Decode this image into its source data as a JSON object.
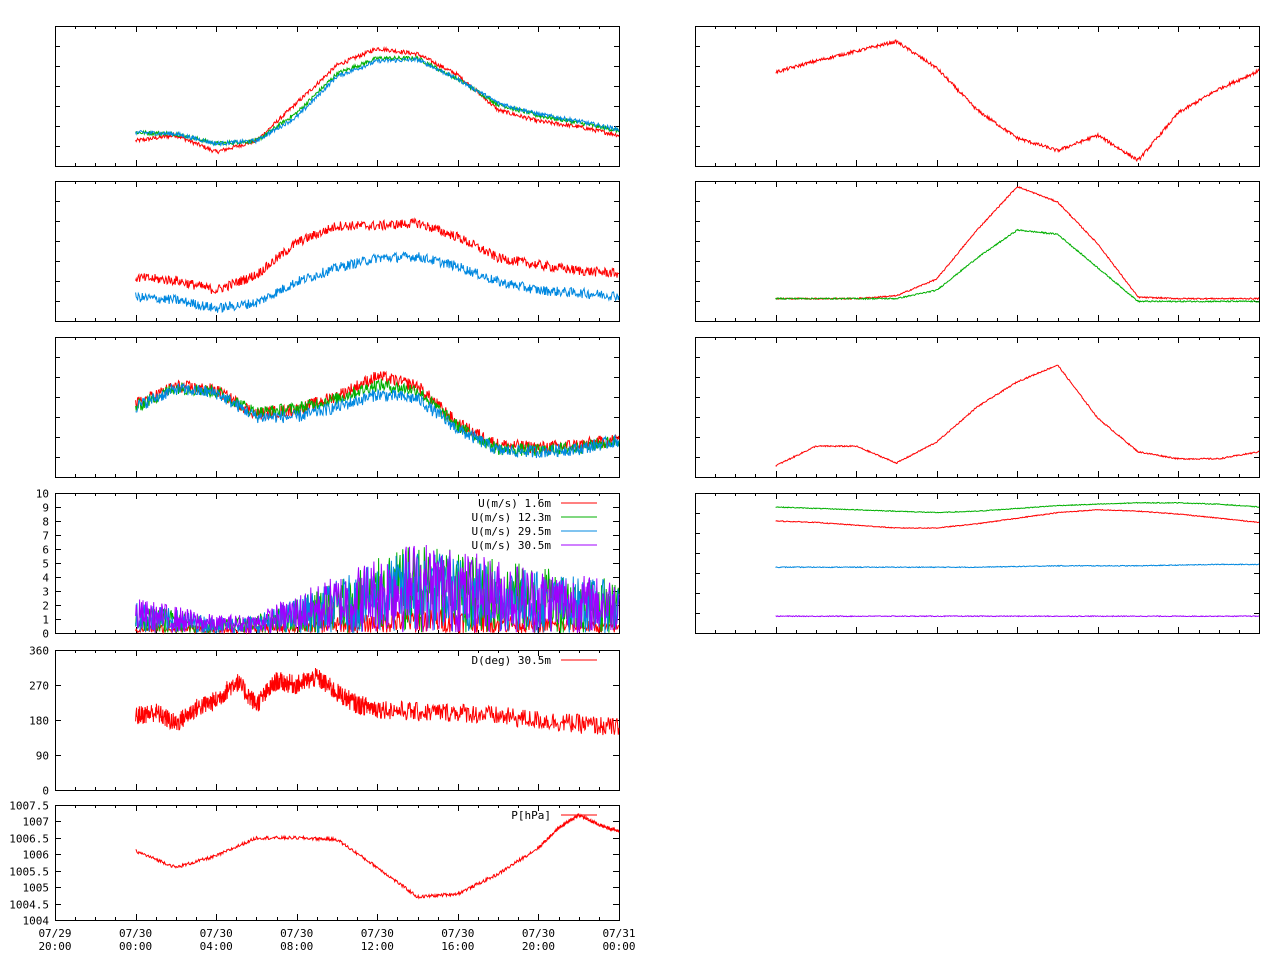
{
  "x_ticks": [
    "07/29\n20:00",
    "07/30\n00:00",
    "07/30\n04:00",
    "07/30\n08:00",
    "07/30\n12:00",
    "07/30\n16:00",
    "07/30\n20:00",
    "07/31\n00:00"
  ],
  "colors": {
    "red": "#ff0000",
    "green": "#00b000",
    "blue": "#0088e0",
    "purple": "#a000ff"
  },
  "chart_data": [
    {
      "id": "temp_profile",
      "type": "line",
      "x": [
        "07/30 00:00",
        "07/30 02:00",
        "07/30 04:00",
        "07/30 06:00",
        "07/30 08:00",
        "07/30 10:00",
        "07/30 12:00",
        "07/30 14:00",
        "07/30 16:00",
        "07/30 18:00",
        "07/30 20:00",
        "07/30 22:00",
        "07/31 00:00"
      ],
      "ylim": [
        0,
        10
      ],
      "title": "",
      "xlabel": "",
      "ylabel": "",
      "series": [
        {
          "color": "#ff0000",
          "values": [
            1.8,
            2.2,
            1.0,
            1.8,
            4.5,
            7.2,
            8.4,
            8.0,
            6.5,
            4.0,
            3.2,
            2.8,
            2.2
          ]
        },
        {
          "color": "#00b000",
          "values": [
            2.4,
            2.3,
            1.6,
            1.8,
            3.8,
            6.6,
            7.7,
            7.7,
            6.2,
            4.4,
            3.6,
            3.1,
            2.5
          ]
        },
        {
          "color": "#0088e0",
          "values": [
            2.4,
            2.3,
            1.6,
            1.8,
            3.5,
            6.4,
            7.5,
            7.6,
            6.2,
            4.5,
            3.7,
            3.2,
            2.6
          ]
        }
      ]
    },
    {
      "id": "radiation_top",
      "type": "line",
      "x": [
        "07/30 00:00",
        "07/30 02:00",
        "07/30 04:00",
        "07/30 06:00",
        "07/30 08:00",
        "07/30 10:00",
        "07/30 12:00",
        "07/30 14:00",
        "07/30 16:00",
        "07/30 18:00",
        "07/30 20:00",
        "07/30 22:00",
        "07/31 00:00"
      ],
      "ylim": [
        0,
        10
      ],
      "title": "",
      "xlabel": "",
      "ylabel": "",
      "series": [
        {
          "color": "#ff0000",
          "values": [
            6.7,
            7.5,
            8.2,
            8.9,
            7.0,
            4.0,
            2.0,
            1.1,
            2.2,
            0.4,
            3.8,
            5.5,
            6.8
          ]
        }
      ]
    },
    {
      "id": "temp_pair",
      "type": "line",
      "x": [
        "07/30 00:00",
        "07/30 02:00",
        "07/30 04:00",
        "07/30 06:00",
        "07/30 08:00",
        "07/30 10:00",
        "07/30 12:00",
        "07/30 14:00",
        "07/30 16:00",
        "07/30 18:00",
        "07/30 20:00",
        "07/30 22:00",
        "07/31 00:00"
      ],
      "ylim": [
        0,
        10
      ],
      "title": "",
      "xlabel": "",
      "ylabel": "",
      "series": [
        {
          "color": "#ff0000",
          "values": [
            3.1,
            2.9,
            2.2,
            3.3,
            5.6,
            6.8,
            6.8,
            7.0,
            6.0,
            4.5,
            4.0,
            3.6,
            3.4
          ]
        },
        {
          "color": "#0088e0",
          "values": [
            1.7,
            1.5,
            0.9,
            1.3,
            2.8,
            3.8,
            4.5,
            4.6,
            3.9,
            2.8,
            2.2,
            2.0,
            1.8
          ]
        }
      ]
    },
    {
      "id": "solar_radiation",
      "type": "line",
      "x": [
        "07/30 00:00",
        "07/30 02:00",
        "07/30 04:00",
        "07/30 06:00",
        "07/30 08:00",
        "07/30 10:00",
        "07/30 12:00",
        "07/30 14:00",
        "07/30 16:00",
        "07/30 18:00",
        "07/30 20:00",
        "07/30 22:00",
        "07/31 00:00"
      ],
      "ylim": [
        0,
        10
      ],
      "title": "",
      "xlabel": "",
      "ylabel": "",
      "series": [
        {
          "color": "#ff0000",
          "values": [
            1.6,
            1.6,
            1.6,
            1.8,
            3.0,
            6.5,
            9.6,
            8.5,
            5.5,
            1.7,
            1.6,
            1.6,
            1.6
          ]
        },
        {
          "color": "#00b000",
          "values": [
            1.6,
            1.6,
            1.6,
            1.6,
            2.2,
            4.5,
            6.5,
            6.2,
            3.8,
            1.4,
            1.4,
            1.4,
            1.4
          ]
        }
      ]
    },
    {
      "id": "humidity_profile",
      "type": "line",
      "x": [
        "07/30 00:00",
        "07/30 02:00",
        "07/30 04:00",
        "07/30 06:00",
        "07/30 08:00",
        "07/30 10:00",
        "07/30 12:00",
        "07/30 14:00",
        "07/30 16:00",
        "07/30 18:00",
        "07/30 20:00",
        "07/30 22:00",
        "07/31 00:00"
      ],
      "ylim": [
        0,
        10
      ],
      "title": "",
      "xlabel": "",
      "ylabel": "",
      "series": [
        {
          "color": "#ff0000",
          "values": [
            5.2,
            6.5,
            6.2,
            4.5,
            4.8,
            5.8,
            7.2,
            6.5,
            3.8,
            2.3,
            2.1,
            2.3,
            2.7
          ]
        },
        {
          "color": "#00b000",
          "values": [
            5.0,
            6.4,
            6.1,
            4.6,
            4.9,
            5.6,
            6.6,
            6.2,
            3.6,
            2.0,
            1.9,
            2.1,
            2.6
          ]
        },
        {
          "color": "#0088e0",
          "values": [
            5.0,
            6.3,
            6.0,
            4.3,
            4.3,
            5.0,
            5.9,
            5.6,
            3.4,
            1.9,
            1.8,
            2.0,
            2.6
          ]
        }
      ]
    },
    {
      "id": "snow_temp",
      "type": "line",
      "x": [
        "07/30 00:00",
        "07/30 02:00",
        "07/30 04:00",
        "07/30 06:00",
        "07/30 08:00",
        "07/30 10:00",
        "07/30 12:00",
        "07/30 14:00",
        "07/30 16:00",
        "07/30 18:00",
        "07/30 20:00",
        "07/30 22:00",
        "07/31 00:00"
      ],
      "ylim": [
        0,
        10
      ],
      "title": "",
      "xlabel": "",
      "ylabel": "",
      "series": [
        {
          "color": "#ff0000",
          "values": [
            0.8,
            2.2,
            2.2,
            1.0,
            2.5,
            5.0,
            6.8,
            8.0,
            4.2,
            1.8,
            1.3,
            1.3,
            1.8
          ]
        }
      ]
    },
    {
      "id": "wind_speed",
      "type": "line",
      "x": [
        "07/30 00:00",
        "07/30 02:00",
        "07/30 04:00",
        "07/30 06:00",
        "07/30 08:00",
        "07/30 10:00",
        "07/30 12:00",
        "07/30 14:00",
        "07/30 16:00",
        "07/30 18:00",
        "07/30 20:00",
        "07/30 22:00",
        "07/31 00:00"
      ],
      "yticks": [
        "0",
        "1",
        "2",
        "3",
        "4",
        "5",
        "6",
        "7",
        "8",
        "9",
        "10"
      ],
      "ylim": [
        0,
        10
      ],
      "title": "",
      "xlabel": "",
      "ylabel": "",
      "series": [
        {
          "name": "U(m/s)  1.6m",
          "color": "#ff0000",
          "values": [
            0.3,
            0.5,
            0.3,
            0.4,
            0.6,
            0.8,
            1.0,
            1.3,
            1.2,
            1.0,
            0.8,
            0.7,
            0.5
          ]
        },
        {
          "name": "U(m/s) 12.3m",
          "color": "#00b000",
          "values": [
            1.5,
            1.2,
            0.7,
            0.9,
            1.8,
            2.8,
            3.8,
            4.6,
            4.2,
            3.8,
            3.4,
            3.0,
            2.7
          ]
        },
        {
          "name": "U(m/s) 29.5m",
          "color": "#0088e0",
          "values": [
            1.6,
            1.2,
            0.8,
            0.9,
            1.8,
            2.7,
            3.6,
            4.4,
            4.0,
            3.6,
            3.2,
            2.9,
            2.6
          ]
        },
        {
          "name": "U(m/s) 30.5m",
          "color": "#a000ff",
          "values": [
            1.8,
            1.4,
            0.9,
            1.0,
            2.0,
            3.0,
            4.0,
            4.8,
            4.3,
            3.8,
            3.4,
            3.0,
            2.8
          ]
        }
      ]
    },
    {
      "id": "level_channels",
      "type": "line",
      "x": [
        "07/30 00:00",
        "07/30 02:00",
        "07/30 04:00",
        "07/30 06:00",
        "07/30 08:00",
        "07/30 10:00",
        "07/30 12:00",
        "07/30 14:00",
        "07/30 16:00",
        "07/30 18:00",
        "07/30 20:00",
        "07/30 22:00",
        "07/31 00:00"
      ],
      "ylim": [
        0,
        10
      ],
      "title": "",
      "xlabel": "",
      "ylabel": "",
      "series": [
        {
          "color": "#00b000",
          "values": [
            9.0,
            8.9,
            8.8,
            8.7,
            8.6,
            8.7,
            8.9,
            9.1,
            9.2,
            9.3,
            9.3,
            9.2,
            9.0
          ]
        },
        {
          "color": "#ff0000",
          "values": [
            8.0,
            7.9,
            7.7,
            7.5,
            7.5,
            7.8,
            8.2,
            8.6,
            8.8,
            8.7,
            8.5,
            8.2,
            7.9
          ]
        },
        {
          "color": "#0088e0",
          "values": [
            4.7,
            4.7,
            4.7,
            4.7,
            4.7,
            4.7,
            4.75,
            4.8,
            4.8,
            4.8,
            4.85,
            4.9,
            4.9
          ]
        },
        {
          "color": "#a000ff",
          "values": [
            1.2,
            1.2,
            1.2,
            1.2,
            1.2,
            1.2,
            1.2,
            1.2,
            1.2,
            1.2,
            1.2,
            1.2,
            1.2
          ]
        }
      ]
    },
    {
      "id": "wind_direction",
      "type": "scatter",
      "x": [
        "07/30 00:00",
        "07/30 01:00",
        "07/30 02:00",
        "07/30 03:00",
        "07/30 04:00",
        "07/30 05:00",
        "07/30 06:00",
        "07/30 07:00",
        "07/30 08:00",
        "07/30 09:00",
        "07/30 10:00",
        "07/30 11:00",
        "07/30 12:00",
        "07/30 14:00",
        "07/30 16:00",
        "07/30 18:00",
        "07/30 20:00",
        "07/30 22:00",
        "07/31 00:00"
      ],
      "yticks": [
        "0",
        "90",
        "180",
        "270",
        "360"
      ],
      "ylim": [
        0,
        360
      ],
      "title": "",
      "xlabel": "",
      "ylabel": "",
      "series": [
        {
          "name": "D(deg)  30.5m",
          "color": "#ff0000",
          "values": [
            190,
            200,
            170,
            210,
            230,
            280,
            220,
            280,
            270,
            290,
            250,
            220,
            210,
            200,
            200,
            190,
            180,
            170,
            160
          ]
        }
      ]
    },
    {
      "id": "pressure",
      "type": "line",
      "x": [
        "07/30 00:00",
        "07/30 02:00",
        "07/30 04:00",
        "07/30 06:00",
        "07/30 08:00",
        "07/30 10:00",
        "07/30 12:00",
        "07/30 14:00",
        "07/30 16:00",
        "07/30 18:00",
        "07/30 20:00",
        "07/30 21:00",
        "07/30 22:00",
        "07/30 23:00",
        "07/31 00:00"
      ],
      "yticks": [
        "1004",
        "1004.5",
        "1005",
        "1005.5",
        "1006",
        "1006.5",
        "1007",
        "1007.5"
      ],
      "ylim": [
        1004,
        1007.5
      ],
      "title": "",
      "xlabel": "",
      "ylabel": "",
      "series": [
        {
          "name": "P[hPa]",
          "color": "#ff0000",
          "values": [
            1006.1,
            1005.6,
            1005.95,
            1006.5,
            1006.5,
            1006.45,
            1005.6,
            1004.7,
            1004.8,
            1005.4,
            1006.2,
            1006.8,
            1007.2,
            1006.9,
            1006.7
          ]
        }
      ]
    }
  ]
}
